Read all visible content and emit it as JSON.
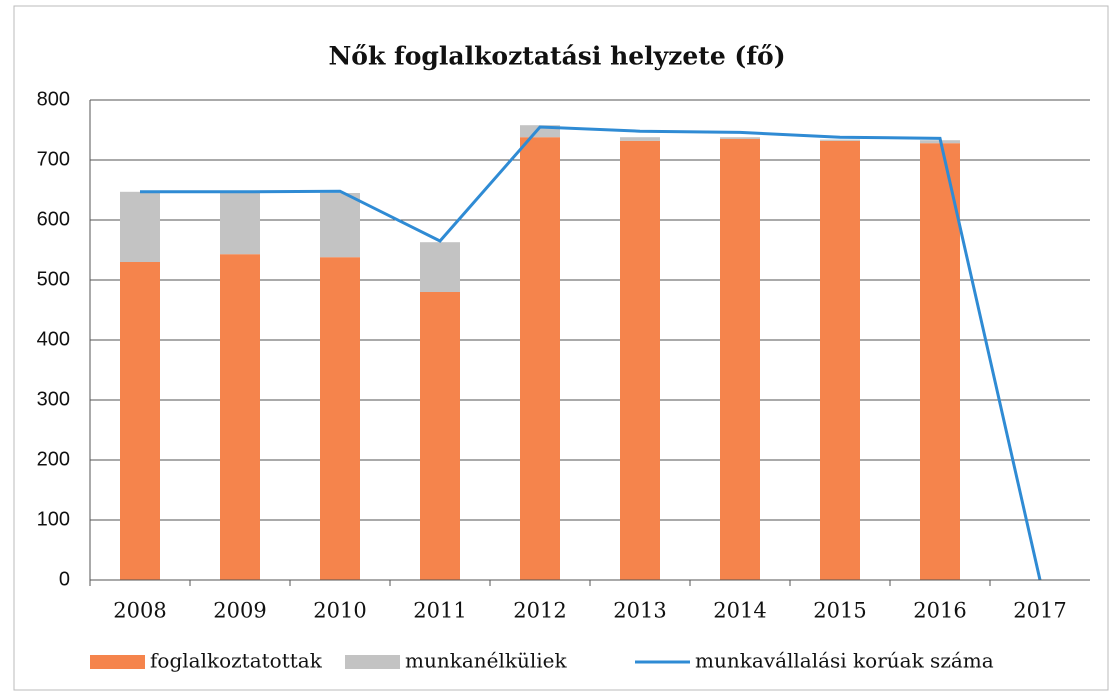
{
  "chart_data": {
    "type": "bar",
    "stacked": true,
    "title": "Nők foglalkoztatási helyzete (fő)",
    "categories": [
      "2008",
      "2009",
      "2010",
      "2011",
      "2012",
      "2013",
      "2014",
      "2015",
      "2016",
      "2017"
    ],
    "series": [
      {
        "name": "foglalkoztatottak",
        "type": "bar",
        "color": "#f5844c",
        "values": [
          530,
          543,
          538,
          480,
          738,
          732,
          735,
          732,
          728,
          0
        ]
      },
      {
        "name": "munkanélküliek",
        "type": "bar",
        "color": "#c3c3c3",
        "values": [
          117,
          102,
          107,
          83,
          20,
          6,
          3,
          2,
          5,
          0
        ]
      },
      {
        "name": "munkavállalási korúak száma",
        "type": "line",
        "color": "#2f8bd4",
        "values": [
          647,
          647,
          648,
          565,
          755,
          748,
          746,
          738,
          736,
          0
        ]
      }
    ],
    "ylim": [
      0,
      800
    ],
    "yticks": [
      0,
      100,
      200,
      300,
      400,
      500,
      600,
      700,
      800
    ],
    "grid": true,
    "legend": "bottom"
  }
}
